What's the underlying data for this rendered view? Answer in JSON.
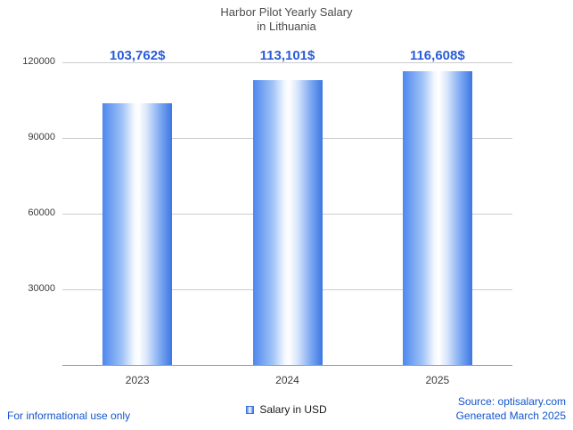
{
  "title": {
    "line1": "Harbor Pilot Yearly Salary",
    "line2": "in Lithuania"
  },
  "legend": {
    "label": "Salary in USD"
  },
  "footer": {
    "disclaimer": "For informational use only",
    "source": "Source: optisalary.com",
    "generated": "Generated March 2025"
  },
  "chart_data": {
    "type": "bar",
    "title": "Harbor Pilot Yearly Salary in Lithuania",
    "categories": [
      "2023",
      "2024",
      "2025"
    ],
    "series": [
      {
        "name": "Salary in USD",
        "values": [
          103762,
          113101,
          116608
        ]
      }
    ],
    "value_labels": [
      "103,762$",
      "113,101$",
      "116,608$"
    ],
    "xlabel": "",
    "ylabel": "",
    "ylim": [
      0,
      120000
    ],
    "yticks": [
      30000,
      60000,
      90000,
      120000
    ],
    "ytick_labels": [
      "30000",
      "60000",
      "90000",
      "120000"
    ],
    "grid": true,
    "legend_position": "bottom",
    "colors": {
      "bar_left": "#4e87ee",
      "bar_mid": "#ffffff",
      "bar_right": "#3c76e1",
      "value_label": "#2b5dd7",
      "axis_text": "#3c3c3c",
      "gridline": "#cccccc",
      "link_text": "#1155cc"
    }
  }
}
